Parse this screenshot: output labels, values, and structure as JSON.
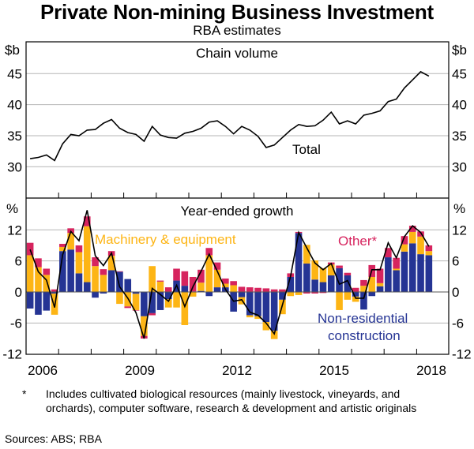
{
  "chart_data": [
    {
      "type": "line",
      "panel": "top",
      "title": "Private Non-mining Business Investment",
      "subtitle": "RBA estimates",
      "panel_title": "Chain volume",
      "ylabel_left": "$b",
      "ylabel_right": "$b",
      "ylim": [
        25,
        50
      ],
      "yticks": [
        30,
        35,
        40,
        45
      ],
      "grid": true,
      "x_start": "2006-Q1",
      "frequency": "quarterly",
      "series": [
        {
          "name": "Total",
          "annotation": "Total",
          "color": "#000000",
          "values": [
            31.3,
            31.5,
            31.9,
            31.0,
            33.7,
            35.2,
            35.0,
            35.9,
            36.0,
            37.0,
            37.6,
            36.2,
            35.5,
            35.2,
            34.1,
            36.5,
            35.1,
            34.7,
            34.6,
            35.4,
            35.7,
            36.2,
            37.2,
            37.4,
            36.5,
            35.3,
            36.5,
            35.9,
            34.9,
            33.1,
            33.5,
            34.7,
            35.9,
            36.8,
            36.5,
            36.6,
            37.5,
            38.8,
            36.9,
            37.4,
            36.9,
            38.3,
            38.6,
            39.0,
            40.5,
            40.9,
            42.7,
            44.0,
            45.3,
            44.6
          ]
        }
      ]
    },
    {
      "type": "bar",
      "stacked": true,
      "panel": "bottom",
      "panel_title": "Year-ended growth",
      "ylabel_left": "%",
      "ylabel_right": "%",
      "ylim": [
        -12,
        18
      ],
      "yticks": [
        -12,
        -6,
        0,
        6,
        12
      ],
      "grid": true,
      "x_start": "2006-Q1",
      "frequency": "quarterly",
      "xticklabels": [
        "2006",
        "2009",
        "2012",
        "2015",
        "2018"
      ],
      "series": [
        {
          "name": "Non-residential construction",
          "color": "#253494",
          "values": [
            -3.2,
            -4.4,
            -3.6,
            -0.3,
            7.9,
            8.2,
            3.6,
            1.9,
            -1.1,
            -0.3,
            4.2,
            3.9,
            2.5,
            -0.35,
            -4.7,
            -4.1,
            -3.5,
            -1.4,
            2.2,
            1.2,
            0.1,
            0.2,
            -0.8,
            0.9,
            0.9,
            -3.8,
            -1.0,
            -4.5,
            -4.7,
            -5.8,
            -7.5,
            -1.5,
            2.9,
            11.4,
            5.5,
            2.4,
            1.9,
            3.2,
            4.6,
            3.2,
            -0.9,
            -3.4,
            -0.8,
            1.1,
            6.7,
            4.2,
            7.8,
            9.4,
            7.3,
            7.1
          ]
        },
        {
          "name": "Machinery & equipment",
          "color": "#fdb515",
          "values": [
            7.1,
            4.8,
            3.3,
            -4.1,
            0.8,
            3.2,
            4.1,
            10.8,
            5.0,
            3.3,
            2.8,
            -2.3,
            -2.8,
            -3.15,
            -3.8,
            5.0,
            2.0,
            -1.6,
            -3.0,
            -6.4,
            -0.9,
            1.6,
            7.1,
            3.4,
            0.7,
            1.3,
            -1.4,
            -0.4,
            -0.5,
            -1.6,
            -1.6,
            -2.8,
            -0.8,
            -0.6,
            3.6,
            3.7,
            2.7,
            2.1,
            -3.5,
            -1.5,
            -1.0,
            1.2,
            2.9,
            0.6,
            0.0,
            0.3,
            1.4,
            2.2,
            3.4,
            0.8
          ]
        },
        {
          "name": "Other*",
          "color": "#d6245e",
          "values": [
            2.4,
            1.7,
            1.2,
            0.5,
            0.6,
            0.9,
            1.3,
            1.9,
            1.7,
            1.1,
            0.9,
            0.1,
            -0.3,
            -0.1,
            -0.5,
            -0.4,
            0.2,
            0.9,
            2.3,
            2.8,
            2.8,
            2.5,
            1.4,
            1.4,
            1.0,
            0.8,
            1.0,
            0.9,
            0.8,
            0.7,
            0.5,
            0.5,
            0.7,
            0.2,
            -0.3,
            -0.3,
            -0.2,
            0.4,
            0.5,
            0.5,
            0.8,
            1.1,
            2.3,
            2.8,
            1.8,
            2.1,
            1.6,
            1.2,
            1.0,
            1.1
          ]
        },
        {
          "name": "Total",
          "type": "line",
          "color": "#000000",
          "values": [
            8.2,
            3.9,
            2.3,
            -3.0,
            7.2,
            11.7,
            9.9,
            15.8,
            7.0,
            5.1,
            7.5,
            1.0,
            -1.2,
            -4.0,
            -9.0,
            0.7,
            -0.5,
            -1.8,
            1.3,
            -2.8,
            1.0,
            4.0,
            7.3,
            4.0,
            0.5,
            -1.8,
            -1.5,
            -3.9,
            -4.5,
            -6.0,
            -8.1,
            -2.5,
            3.0,
            11.5,
            8.5,
            5.6,
            4.3,
            5.5,
            1.5,
            2.2,
            -1.2,
            -1.2,
            4.3,
            4.3,
            9.5,
            6.6,
            10.7,
            12.8,
            11.5,
            8.8
          ]
        }
      ],
      "annotations": [
        {
          "text": "Machinery & equipment",
          "color": "#fdb515"
        },
        {
          "text": "Other*",
          "color": "#d6245e"
        },
        {
          "text": "Non-residential",
          "color": "#253494"
        },
        {
          "text": "construction",
          "color": "#253494"
        }
      ]
    }
  ],
  "header": {
    "title": "Private Non-mining Business Investment",
    "subtitle": "RBA estimates"
  },
  "top_panel": {
    "title": "Chain volume",
    "unit": "$b",
    "tick_labels": [
      "45",
      "40",
      "35",
      "30"
    ],
    "series_label": "Total"
  },
  "bottom_panel": {
    "title": "Year-ended growth",
    "unit": "%",
    "tick_labels": [
      "12",
      "6",
      "0",
      "-6",
      "-12"
    ],
    "labels": {
      "machinery": "Machinery & equipment",
      "other": "Other*",
      "nonres1": "Non-residential",
      "nonres2": "construction"
    }
  },
  "x_axis": {
    "labels": [
      "2006",
      "2009",
      "2012",
      "2015",
      "2018"
    ]
  },
  "footnote": {
    "marker": "*",
    "text": "Includes cultivated biological resources (mainly livestock, vineyards, and orchards), computer software, research & development and artistic originals"
  },
  "sources": "Sources: ABS; RBA"
}
